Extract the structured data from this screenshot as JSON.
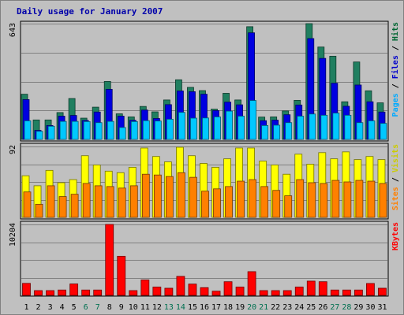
{
  "chart_data": {
    "type": "bar",
    "title": "Daily usage for January 2007",
    "categories": [
      "1",
      "2",
      "3",
      "4",
      "5",
      "6",
      "7",
      "8",
      "9",
      "10",
      "11",
      "12",
      "13",
      "14",
      "15",
      "16",
      "17",
      "18",
      "19",
      "20",
      "21",
      "22",
      "23",
      "24",
      "25",
      "26",
      "27",
      "28",
      "29",
      "30",
      "31"
    ],
    "weekend_days": [
      "6",
      "7",
      "13",
      "14",
      "20",
      "21",
      "27",
      "28"
    ],
    "panels": [
      {
        "id": "hits-files-pages",
        "max_label": "643",
        "ylim": [
          0,
          643
        ],
        "axis_label_parts": [
          {
            "text": "Pages",
            "color": "#00aaff"
          },
          {
            "text": " / ",
            "color": "#000000"
          },
          {
            "text": "Files",
            "color": "#0000cc"
          },
          {
            "text": " / ",
            "color": "#000000"
          },
          {
            "text": "Hits",
            "color": "#006633"
          }
        ],
        "series": [
          {
            "name": "Hits",
            "color": "#207f60",
            "values": [
              251,
              108,
              108,
              149,
              227,
              118,
              179,
              322,
              142,
              125,
              183,
              153,
              219,
              331,
              289,
              271,
              168,
              256,
              219,
              626,
              124,
              125,
              158,
              217,
              643,
              513,
              462,
              209,
              430,
              270,
              203
            ]
          },
          {
            "name": "Files",
            "color": "#0000e0",
            "values": [
              221,
              50,
              77,
              129,
              133,
              105,
              152,
              278,
              129,
              106,
              163,
              116,
              193,
              269,
              265,
              251,
              160,
              207,
              192,
              592,
              104,
              107,
              137,
              191,
              560,
              450,
              312,
              184,
              302,
              209,
              152
            ]
          },
          {
            "name": "Pages",
            "color": "#00c8ff",
            "values": [
              103,
              45,
              73,
              100,
              100,
              99,
              93,
              100,
              66,
              99,
              104,
              102,
              112,
              150,
              118,
              119,
              125,
              157,
              129,
              216,
              77,
              79,
              93,
              129,
              141,
              134,
              146,
              134,
              93,
              103,
              89
            ]
          }
        ]
      },
      {
        "id": "visits-sites",
        "max_label": "92",
        "ylim": [
          0,
          92
        ],
        "axis_label_parts": [
          {
            "text": "Sites",
            "color": "#ff8000"
          },
          {
            "text": " / ",
            "color": "#000000"
          },
          {
            "text": "Visits",
            "color": "#cccc00"
          }
        ],
        "series": [
          {
            "name": "Visits",
            "color": "#ffff00",
            "values": [
              54,
              41,
              61,
              45,
              49,
              80,
              68,
              60,
              58,
              65,
              90,
              79,
              72,
              91,
              80,
              70,
              65,
              76,
              90,
              90,
              73,
              68,
              56,
              82,
              69,
              84,
              76,
              85,
              75,
              79,
              75
            ]
          },
          {
            "name": "Sites",
            "color": "#ff8000",
            "values": [
              33,
              17,
              41,
              27,
              30,
              44,
              41,
              40,
              38,
              41,
              56,
              55,
              53,
              58,
              52,
              34,
              37,
              40,
              47,
              49,
              40,
              35,
              28,
              49,
              45,
              44,
              48,
              46,
              48,
              47,
              44
            ]
          }
        ]
      },
      {
        "id": "kbytes",
        "max_label": "10204",
        "ylim": [
          0,
          10204
        ],
        "axis_label_parts": [
          {
            "text": "KBytes",
            "color": "#ff0000"
          }
        ],
        "series": [
          {
            "name": "KBytes",
            "color": "#ff0000",
            "values": [
              1722,
              682,
              682,
              767,
              1637,
              767,
              767,
              10204,
              5627,
              682,
              2216,
              1193,
              1023,
              2727,
              1618,
              1108,
              597,
              1961,
              1193,
              3409,
              682,
              682,
              682,
              1194,
              2046,
              1961,
              767,
              767,
              767,
              1705,
              1023
            ]
          }
        ]
      }
    ]
  }
}
